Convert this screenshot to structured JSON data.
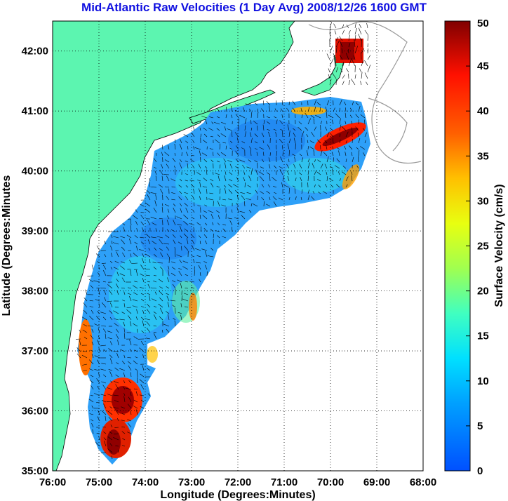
{
  "title": "Mid-Atlantic Raw Velocities (1 Day Avg) 2008/12/26 1600 GMT",
  "map": {
    "xlabel": "Longitude (Degrees:Minutes)",
    "ylabel": "Latitude (Degrees:Minutes",
    "x_ticks": [
      "76:00",
      "75:00",
      "74:00",
      "73:00",
      "72:00",
      "71:00",
      "70:00",
      "69:00",
      "68:00"
    ],
    "y_ticks": [
      "42:00",
      "41:00",
      "40:00",
      "39:00",
      "38:00",
      "37:00",
      "36:00",
      "35:00"
    ],
    "lon_range": [
      -76,
      -68
    ],
    "lat_range": [
      35,
      42.5
    ],
    "land_color": "#5cf5b0",
    "grid": "dotted"
  },
  "colorbar": {
    "label": "Surface Velocity (cm/s)",
    "ticks": [
      "50",
      "45",
      "40",
      "35",
      "30",
      "25",
      "20",
      "15",
      "10",
      "5",
      "0"
    ],
    "range": [
      0,
      50
    ],
    "colormap": "jet"
  }
}
